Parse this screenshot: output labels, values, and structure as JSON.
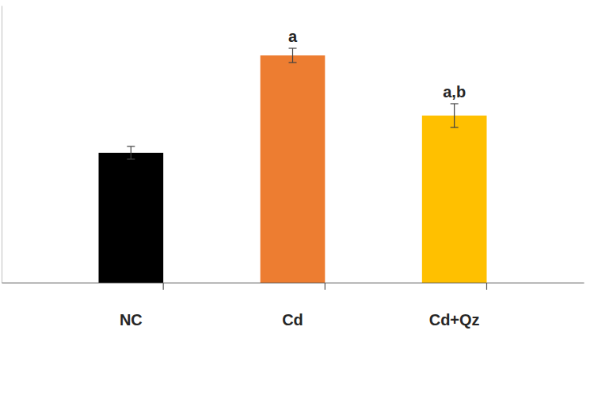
{
  "chart_data": {
    "type": "bar",
    "categories": [
      "NC",
      "Cd",
      "Cd+Qz"
    ],
    "values": [
      1.64,
      2.87,
      2.11
    ],
    "errors": [
      0.08,
      0.09,
      0.15
    ],
    "colors": [
      "#000000",
      "#ed7d31",
      "#ffc000"
    ],
    "annotations": [
      {
        "category": "Cd",
        "text": "a"
      },
      {
        "category": "Cd+Qz",
        "text": "a,b"
      }
    ],
    "ylim": [
      0,
      3.5
    ],
    "yticks": [],
    "tick_labels": "x",
    "grid": false
  }
}
